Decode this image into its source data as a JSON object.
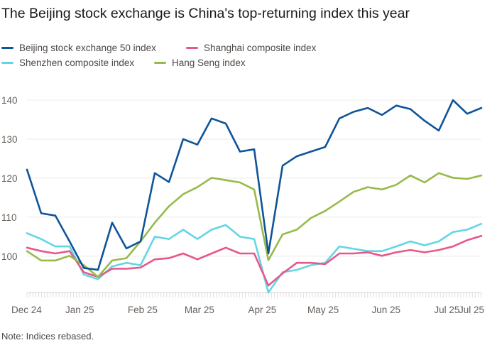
{
  "chart_data": {
    "type": "line",
    "title": "The Beijing stock exchange is China's top-returning index this year",
    "note": "Note: Indices rebased.",
    "xlabel": "",
    "ylabel": "",
    "ylim": [
      90.7,
      145
    ],
    "xlim": [
      "2024-12-06",
      "2025-07-18"
    ],
    "grid": true,
    "legend_placement": "top",
    "yticks": [
      100,
      110,
      120,
      130,
      140
    ],
    "xticks": [
      {
        "date": "2024-12-06",
        "label": "Dec 24"
      },
      {
        "date": "2025-01-01",
        "label": "Jan 25"
      },
      {
        "date": "2025-02-01",
        "label": "Feb 25"
      },
      {
        "date": "2025-03-01",
        "label": "Mar 25"
      },
      {
        "date": "2025-04-01",
        "label": "Apr 25"
      },
      {
        "date": "2025-05-01",
        "label": "May 25"
      },
      {
        "date": "2025-06-01",
        "label": "Jun 25"
      },
      {
        "date": "2025-07-01",
        "label": "Jul 25"
      },
      {
        "date": "2025-07-18",
        "label": "Jul 25"
      }
    ],
    "x": [
      "2024-12-06",
      "2024-12-13",
      "2024-12-20",
      "2024-12-27",
      "2025-01-03",
      "2025-01-10",
      "2025-01-17",
      "2025-01-24",
      "2025-01-31",
      "2025-02-07",
      "2025-02-14",
      "2025-02-21",
      "2025-02-28",
      "2025-03-07",
      "2025-03-14",
      "2025-03-21",
      "2025-03-28",
      "2025-04-04",
      "2025-04-11",
      "2025-04-18",
      "2025-04-25",
      "2025-05-02",
      "2025-05-09",
      "2025-05-16",
      "2025-05-23",
      "2025-05-30",
      "2025-06-06",
      "2025-06-13",
      "2025-06-20",
      "2025-06-27",
      "2025-07-04",
      "2025-07-11",
      "2025-07-18"
    ],
    "series": [
      {
        "name": "Beijing stock exchange 50 index",
        "color": "#0f5499",
        "values": [
          122.2,
          111,
          110.4,
          103.8,
          97,
          96.5,
          108.6,
          102,
          103.8,
          121.3,
          119,
          130,
          128.6,
          135.3,
          134,
          126.8,
          127.4,
          100.7,
          123.2,
          125.6,
          126.8,
          128,
          135.3,
          137,
          138,
          136.2,
          138.6,
          137.7,
          134.7,
          132.2,
          140,
          136.5,
          138
        ]
      },
      {
        "name": "Shanghai composite index",
        "color": "#e8578a",
        "values": [
          102.2,
          101.3,
          100.7,
          101.3,
          95.9,
          94.7,
          96.8,
          96.8,
          97.1,
          99.2,
          99.5,
          100.7,
          99.2,
          100.7,
          102.2,
          100.7,
          100.7,
          92.5,
          95.6,
          98.3,
          98.3,
          98,
          100.7,
          100.7,
          101,
          100.1,
          101,
          101.6,
          101,
          101.6,
          102.5,
          104.1,
          105.2
        ]
      },
      {
        "name": "Shenzhen composite index",
        "color": "#63d6e6",
        "values": [
          105.9,
          104.4,
          102.5,
          102.5,
          95.3,
          94.1,
          97.4,
          98.3,
          97.7,
          105,
          104.4,
          106.8,
          104.4,
          106.8,
          108,
          105,
          104.4,
          90.7,
          95.9,
          96.5,
          97.7,
          98.3,
          102.5,
          101.9,
          101.3,
          101.3,
          102.5,
          103.8,
          102.8,
          103.8,
          106.2,
          106.8,
          108.3
        ]
      },
      {
        "name": "Hang Seng index",
        "color": "#96bb4b",
        "values": [
          101.3,
          98.9,
          98.9,
          100.1,
          97.7,
          94.7,
          98.9,
          99.5,
          103.8,
          108.6,
          112.8,
          115.9,
          117.7,
          120.1,
          119.5,
          118.9,
          117.1,
          99,
          105.6,
          106.8,
          109.8,
          111.6,
          114,
          116.5,
          117.7,
          117.1,
          118.3,
          120.7,
          118.9,
          121.3,
          120.1,
          119.8,
          120.7
        ]
      }
    ]
  }
}
